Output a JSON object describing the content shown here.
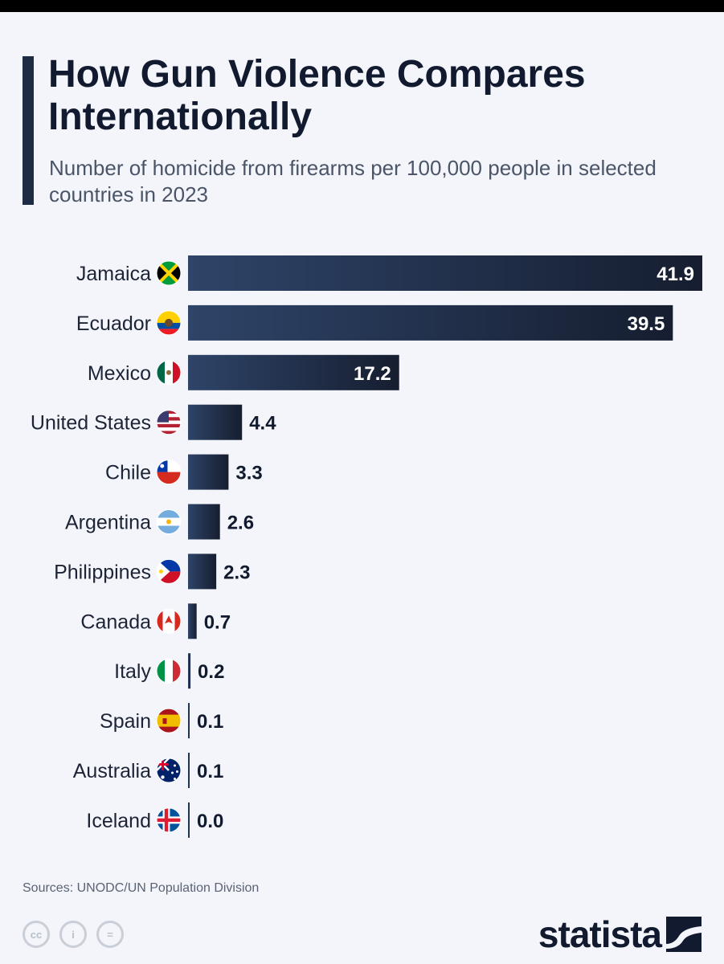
{
  "header": {
    "title": "How Gun Violence Compares Internationally",
    "subtitle": "Number of homicide from firearms per 100,000 people in selected countries in 2023"
  },
  "colors": {
    "bar_dark": "#161e30",
    "bar_light": "#2e4468",
    "text_dark": "#111a2e",
    "background": "#f3f5fa"
  },
  "chart_data": {
    "type": "bar",
    "orientation": "horizontal",
    "title": "How Gun Violence Compares Internationally",
    "subtitle": "Number of homicide from firearms per 100,000 people in selected countries in 2023",
    "categories": [
      "Jamaica",
      "Ecuador",
      "Mexico",
      "United States",
      "Chile",
      "Argentina",
      "Philippines",
      "Canada",
      "Italy",
      "Spain",
      "Australia",
      "Iceland"
    ],
    "values": [
      41.9,
      39.5,
      17.2,
      4.4,
      3.3,
      2.6,
      2.3,
      0.7,
      0.2,
      0.1,
      0.1,
      0.0
    ],
    "value_labels": [
      "41.9",
      "39.5",
      "17.2",
      "4.4",
      "3.3",
      "2.6",
      "2.3",
      "0.7",
      "0.2",
      "0.1",
      "0.1",
      "0.0"
    ],
    "flags": [
      "jamaica-flag-icon",
      "ecuador-flag-icon",
      "mexico-flag-icon",
      "usa-flag-icon",
      "chile-flag-icon",
      "argentina-flag-icon",
      "philippines-flag-icon",
      "canada-flag-icon",
      "italy-flag-icon",
      "spain-flag-icon",
      "australia-flag-icon",
      "iceland-flag-icon"
    ],
    "xlim": [
      0,
      41.9
    ],
    "xlabel": "",
    "ylabel": ""
  },
  "footer": {
    "source": "Sources: UNODC/UN Population Division",
    "brand": "statista",
    "license_icons": [
      "cc",
      "by",
      "nd"
    ],
    "license_labels": [
      "cc",
      "i",
      "="
    ]
  }
}
